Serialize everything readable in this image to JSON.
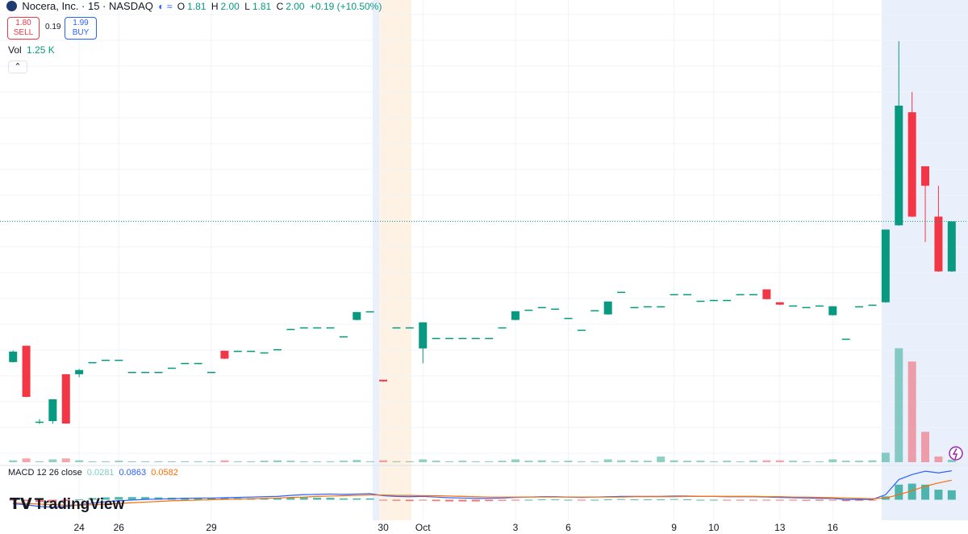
{
  "header": {
    "title": "Nocera, Inc. · 15 · NASDAQ",
    "open_label": "O",
    "open": "1.81",
    "high_label": "H",
    "high": "2.00",
    "low_label": "L",
    "low": "1.81",
    "close_label": "C",
    "close": "2.00",
    "change": "+0.19 (+10.50%)",
    "sell_price": "1.80",
    "sell": "SELL",
    "spread": "0.19",
    "buy_price": "1.99",
    "buy": "BUY",
    "volume_name": "Vol",
    "volume_value": "1.25 K",
    "macd_name": "MACD 12 26 close",
    "logo": "TradingView"
  },
  "chart_data": {
    "type": "candlestick",
    "open": [
      1.466,
      1.528,
      1.24,
      1.242,
      1.42,
      1.42,
      1.466,
      1.475,
      1.475,
      1.429,
      1.429,
      1.429,
      1.445,
      1.463,
      1.463,
      1.429,
      1.509,
      1.509,
      1.509,
      1.503,
      1.515,
      1.592,
      1.598,
      1.598,
      1.598,
      1.564,
      1.626,
      1.659,
      1.399,
      1.598,
      1.598,
      1.518,
      1.558,
      1.558,
      1.558,
      1.558,
      1.558,
      1.598,
      1.626,
      1.665,
      1.675,
      1.669,
      1.634,
      1.589,
      1.663,
      1.647,
      1.733,
      1.675,
      1.678,
      1.678,
      1.724,
      1.724,
      1.699,
      1.702,
      1.702,
      1.724,
      1.724,
      1.742,
      1.693,
      1.681,
      1.675,
      1.681,
      1.644,
      1.555,
      1.678,
      1.684,
      1.693,
      1.985,
      2.414,
      2.209,
      2.018,
      1.81
    ],
    "high": [
      1.51,
      1.528,
      1.25,
      1.325,
      1.42,
      1.44,
      1.466,
      1.475,
      1.475,
      1.429,
      1.429,
      1.429,
      1.445,
      1.463,
      1.463,
      1.429,
      1.509,
      1.509,
      1.509,
      1.503,
      1.515,
      1.592,
      1.598,
      1.598,
      1.598,
      1.564,
      1.656,
      1.659,
      1.399,
      1.598,
      1.598,
      1.617,
      1.558,
      1.558,
      1.558,
      1.558,
      1.558,
      1.598,
      1.659,
      1.665,
      1.675,
      1.669,
      1.634,
      1.589,
      1.663,
      1.696,
      1.733,
      1.675,
      1.678,
      1.678,
      1.724,
      1.724,
      1.699,
      1.702,
      1.702,
      1.724,
      1.724,
      1.742,
      1.693,
      1.681,
      1.675,
      1.681,
      1.678,
      1.555,
      1.678,
      1.684,
      1.969,
      2.684,
      2.491,
      2.209,
      2.135,
      2.0
    ],
    "low": [
      1.466,
      1.334,
      1.233,
      1.233,
      1.233,
      1.41,
      1.466,
      1.475,
      1.475,
      1.429,
      1.429,
      1.429,
      1.445,
      1.463,
      1.463,
      1.429,
      1.479,
      1.509,
      1.509,
      1.503,
      1.515,
      1.592,
      1.598,
      1.598,
      1.598,
      1.564,
      1.626,
      1.659,
      1.393,
      1.598,
      1.598,
      1.463,
      1.558,
      1.558,
      1.558,
      1.558,
      1.558,
      1.598,
      1.626,
      1.665,
      1.675,
      1.669,
      1.634,
      1.589,
      1.663,
      1.647,
      1.733,
      1.675,
      1.678,
      1.678,
      1.724,
      1.724,
      1.699,
      1.702,
      1.702,
      1.724,
      1.724,
      1.705,
      1.684,
      1.681,
      1.675,
      1.681,
      1.644,
      1.555,
      1.678,
      1.684,
      1.693,
      1.985,
      2.018,
      1.923,
      1.81,
      1.81
    ],
    "close": [
      1.506,
      1.334,
      1.24,
      1.325,
      1.233,
      1.436,
      1.466,
      1.475,
      1.475,
      1.429,
      1.429,
      1.429,
      1.445,
      1.463,
      1.463,
      1.429,
      1.479,
      1.509,
      1.509,
      1.503,
      1.515,
      1.592,
      1.598,
      1.598,
      1.598,
      1.564,
      1.656,
      1.659,
      1.393,
      1.598,
      1.598,
      1.617,
      1.558,
      1.558,
      1.558,
      1.558,
      1.558,
      1.598,
      1.659,
      1.665,
      1.675,
      1.669,
      1.634,
      1.589,
      1.663,
      1.696,
      1.733,
      1.675,
      1.678,
      1.678,
      1.724,
      1.724,
      1.699,
      1.702,
      1.702,
      1.724,
      1.724,
      1.705,
      1.684,
      1.681,
      1.675,
      1.681,
      1.678,
      1.555,
      1.678,
      1.684,
      1.969,
      2.439,
      2.018,
      2.135,
      1.81,
      2.0
    ],
    "volume": [
      1.0,
      2.0,
      0.5,
      1.5,
      2.0,
      1.0,
      0.5,
      0.5,
      0.8,
      0.5,
      0.5,
      0.5,
      0.5,
      0.5,
      0.5,
      0.5,
      1.0,
      0.5,
      0.5,
      0.8,
      1.0,
      0.8,
      0.5,
      0.5,
      0.5,
      0.8,
      1.2,
      0.5,
      1.0,
      0.5,
      0.5,
      1.5,
      0.8,
      0.5,
      0.8,
      0.5,
      0.5,
      0.8,
      1.5,
      0.8,
      1.0,
      0.5,
      0.8,
      0.5,
      0.5,
      1.5,
      1.0,
      0.8,
      0.8,
      3.0,
      1.0,
      0.8,
      0.8,
      0.5,
      0.8,
      0.5,
      0.8,
      1.0,
      1.0,
      0.8,
      0.5,
      0.5,
      1.5,
      0.8,
      0.8,
      1.0,
      5.0,
      60.0,
      53.0,
      16.0,
      3.0,
      1.25
    ],
    "macd": [
      -0.012,
      -0.015,
      -0.02,
      -0.022,
      -0.02,
      -0.015,
      -0.01,
      -0.006,
      -0.003,
      -0.001,
      0.001,
      0.002,
      0.003,
      0.004,
      0.005,
      0.005,
      0.006,
      0.007,
      0.008,
      0.009,
      0.01,
      0.013,
      0.015,
      0.016,
      0.017,
      0.016,
      0.017,
      0.018,
      0.012,
      0.01,
      0.009,
      0.01,
      0.008,
      0.006,
      0.005,
      0.004,
      0.004,
      0.005,
      0.007,
      0.008,
      0.009,
      0.009,
      0.008,
      0.007,
      0.008,
      0.009,
      0.01,
      0.01,
      0.01,
      0.01,
      0.011,
      0.011,
      0.01,
      0.01,
      0.009,
      0.009,
      0.009,
      0.008,
      0.007,
      0.006,
      0.005,
      0.004,
      0.004,
      0.001,
      0.001,
      0.001,
      0.015,
      0.06,
      0.075,
      0.085,
      0.08,
      0.0863
    ],
    "signal": [
      -0.01,
      -0.011,
      -0.013,
      -0.015,
      -0.016,
      -0.016,
      -0.015,
      -0.013,
      -0.011,
      -0.009,
      -0.007,
      -0.005,
      -0.003,
      -0.002,
      -0.001,
      0.0,
      0.001,
      0.002,
      0.003,
      0.004,
      0.005,
      0.007,
      0.008,
      0.01,
      0.011,
      0.012,
      0.013,
      0.014,
      0.014,
      0.013,
      0.013,
      0.012,
      0.012,
      0.011,
      0.01,
      0.009,
      0.008,
      0.008,
      0.008,
      0.008,
      0.008,
      0.008,
      0.008,
      0.008,
      0.008,
      0.008,
      0.008,
      0.009,
      0.009,
      0.009,
      0.009,
      0.01,
      0.01,
      0.01,
      0.01,
      0.01,
      0.01,
      0.009,
      0.009,
      0.008,
      0.008,
      0.007,
      0.006,
      0.005,
      0.004,
      0.003,
      0.005,
      0.015,
      0.027,
      0.04,
      0.05,
      0.0582
    ],
    "histogram": [
      -0.002,
      -0.004,
      -0.007,
      -0.007,
      -0.004,
      0.001,
      0.005,
      0.007,
      0.008,
      0.008,
      0.008,
      0.007,
      0.006,
      0.006,
      0.006,
      0.005,
      0.005,
      0.005,
      0.005,
      0.005,
      0.005,
      0.006,
      0.007,
      0.006,
      0.006,
      0.004,
      0.004,
      0.004,
      -0.002,
      -0.003,
      -0.004,
      -0.002,
      -0.004,
      -0.005,
      -0.005,
      -0.005,
      -0.004,
      -0.003,
      -0.001,
      0,
      0.001,
      0.001,
      0,
      -0.001,
      0,
      0.001,
      0.002,
      0.001,
      0.001,
      0.001,
      0.002,
      0.001,
      0,
      0,
      -0.001,
      -0.001,
      -0.001,
      -0.001,
      -0.002,
      -0.002,
      -0.003,
      -0.003,
      -0.002,
      -0.004,
      -0.003,
      -0.002,
      0.01,
      0.045,
      0.048,
      0.045,
      0.03,
      0.0281
    ],
    "ylim": [
      1.08,
      2.84
    ],
    "volume_lim": [
      0,
      62
    ],
    "macd_lim": [
      -0.03,
      0.095
    ],
    "xticks": [
      {
        "value": 5,
        "label": "24"
      },
      {
        "value": 8,
        "label": "26"
      },
      {
        "value": 15,
        "label": "29"
      },
      {
        "value": 28,
        "label": "30"
      },
      {
        "value": 31,
        "label": "Oct"
      },
      {
        "value": 38,
        "label": "3"
      },
      {
        "value": 42,
        "label": "6"
      },
      {
        "value": 50,
        "label": "9"
      },
      {
        "value": 53,
        "label": "10"
      },
      {
        "value": 58,
        "label": "13"
      },
      {
        "value": 62,
        "label": "16"
      }
    ],
    "up_color": "#089981",
    "down_color": "#f23645",
    "macd_color": "#2962ff",
    "signal_color": "#ff6d00",
    "grid": true
  }
}
